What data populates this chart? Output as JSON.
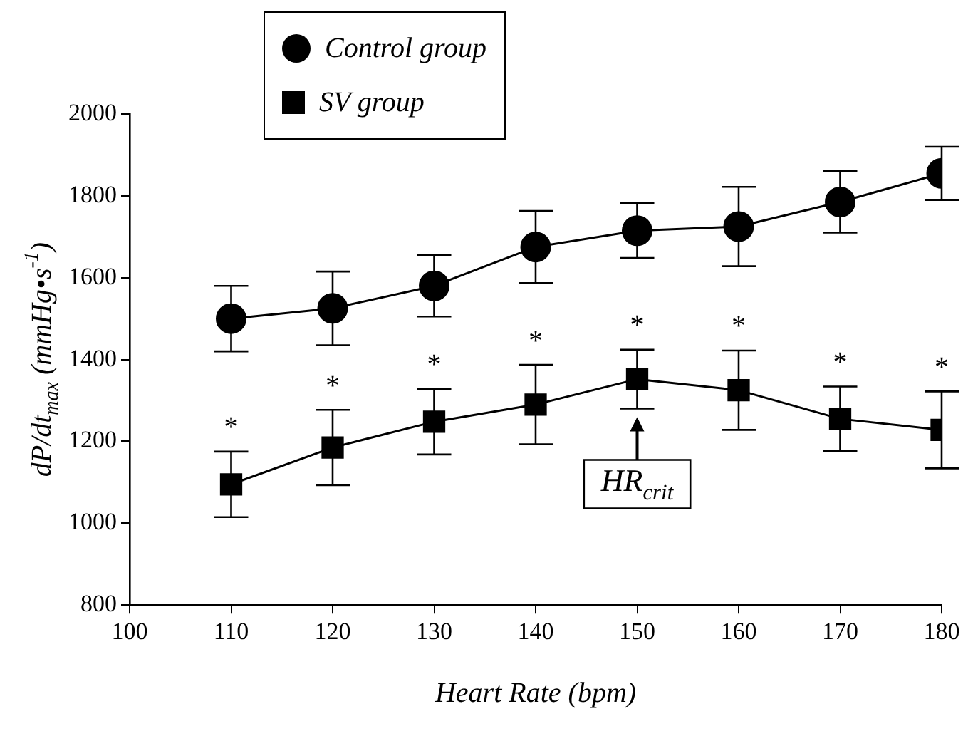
{
  "chart_data": {
    "type": "line",
    "xlabel": "Heart Rate (bpm)",
    "ylabel": "dP/dt$_{max}$ (mmHg•s$^{-1}$)",
    "x": [
      110,
      120,
      130,
      140,
      150,
      160,
      170,
      180
    ],
    "series": [
      {
        "name": "Control group",
        "color": "#000000",
        "marker": "circle",
        "values": [
          1500,
          1525,
          1580,
          1675,
          1715,
          1725,
          1785,
          1855
        ],
        "errors": [
          80,
          90,
          75,
          88,
          67,
          97,
          75,
          65
        ]
      },
      {
        "name": "SV group",
        "color": "#000000",
        "marker": "square",
        "values": [
          1095,
          1185,
          1248,
          1290,
          1352,
          1325,
          1255,
          1228
        ],
        "errors": [
          80,
          92,
          80,
          97,
          72,
          97,
          79,
          94
        ]
      }
    ],
    "xlim": [
      100,
      180
    ],
    "xticks": [
      100,
      110,
      120,
      130,
      140,
      150,
      160,
      170,
      180
    ],
    "ylim": [
      800,
      2000
    ],
    "yticks": [
      800,
      1000,
      1200,
      1400,
      1600,
      1800,
      2000
    ],
    "grid": false,
    "legend": "top left",
    "line_style": "solid",
    "annotations": [
      {
        "text": "*",
        "x": 110,
        "y": 1095
      },
      {
        "text": "*",
        "x": 120,
        "y": 1185
      },
      {
        "text": "*",
        "x": 130,
        "y": 1248
      },
      {
        "text": "*",
        "x": 140,
        "y": 1290
      },
      {
        "text": "*",
        "x": 150,
        "y": 1352
      },
      {
        "text": "*",
        "x": 160,
        "y": 1325
      },
      {
        "text": "*",
        "x": 170,
        "y": 1255
      },
      {
        "text": "*",
        "x": 180,
        "y": 1228
      },
      {
        "text": "HR$_{crit}$",
        "x": 150,
        "y": 1352
      }
    ]
  }
}
